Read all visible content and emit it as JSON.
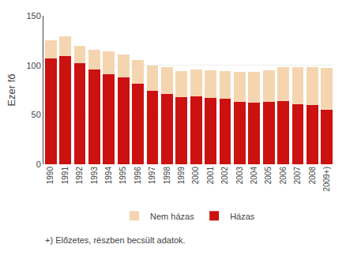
{
  "chart_data": {
    "type": "bar",
    "stacked": true,
    "ylabel": "Ezer fő",
    "annotations": [
      "+) Előzetes, részben becsült adatok."
    ],
    "categories": [
      "1990",
      "1991",
      "1992",
      "1993",
      "1994",
      "1995",
      "1996",
      "1997",
      "1998",
      "1999",
      "2000",
      "2001",
      "2002",
      "2003",
      "2004",
      "2005",
      "2006",
      "2007",
      "2008",
      "2009+)"
    ],
    "series": [
      {
        "name": "Házas",
        "color": "#cc1111",
        "values": [
          107,
          109,
          102,
          96,
          91,
          88,
          81,
          74,
          71,
          68,
          69,
          67,
          66,
          63,
          62,
          63,
          64,
          61,
          60,
          55
        ]
      },
      {
        "name": "Nem házas",
        "color": "#f5d5b0",
        "values": [
          18,
          20,
          18,
          20,
          23,
          23,
          24,
          26,
          27,
          26,
          27,
          28,
          28,
          30,
          31,
          32,
          34,
          37,
          38,
          42
        ]
      }
    ],
    "ylim": [
      0,
      150
    ],
    "yticks": [
      0,
      50,
      100,
      150
    ],
    "grid": true,
    "legend": "bottom"
  }
}
